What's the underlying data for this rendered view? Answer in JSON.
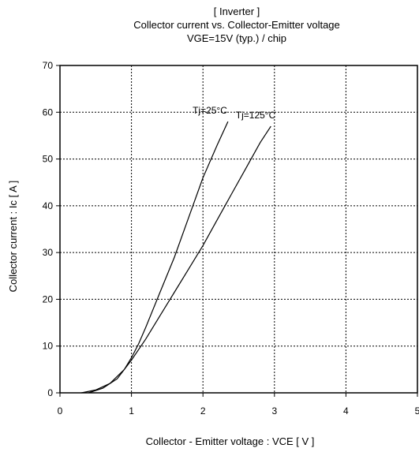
{
  "chart_data": {
    "type": "line",
    "title_lines": [
      "[ Inverter ]",
      "Collector current  vs.  Collector-Emitter voltage",
      "VGE=15V  (typ.) / chip"
    ],
    "xlabel": "Collector - Emitter voltage  :  VCE  [ V ]",
    "ylabel": "Collector current  :  Ic  [ A ]",
    "xlim": [
      0,
      5
    ],
    "ylim": [
      0,
      70
    ],
    "xticks": [
      0,
      1,
      2,
      3,
      4,
      5
    ],
    "yticks": [
      0,
      10,
      20,
      30,
      40,
      50,
      60,
      70
    ],
    "grid": true,
    "series": [
      {
        "name": "Tj=25°C",
        "points": [
          [
            0.3,
            0
          ],
          [
            0.5,
            0.6
          ],
          [
            0.7,
            2
          ],
          [
            0.9,
            5
          ],
          [
            1.0,
            7.5
          ],
          [
            1.1,
            10.5
          ],
          [
            1.2,
            14
          ],
          [
            1.4,
            21.5
          ],
          [
            1.6,
            29
          ],
          [
            1.8,
            37.5
          ],
          [
            2.0,
            46
          ],
          [
            2.2,
            53
          ],
          [
            2.35,
            58
          ]
        ]
      },
      {
        "name": "Tj=125°C",
        "points": [
          [
            0.4,
            0
          ],
          [
            0.6,
            1
          ],
          [
            0.8,
            3
          ],
          [
            1.0,
            7
          ],
          [
            1.2,
            11.5
          ],
          [
            1.4,
            16.5
          ],
          [
            1.6,
            21.5
          ],
          [
            1.8,
            26.5
          ],
          [
            2.0,
            31.5
          ],
          [
            2.2,
            37
          ],
          [
            2.4,
            42.5
          ],
          [
            2.6,
            48
          ],
          [
            2.8,
            53.5
          ],
          [
            2.95,
            57
          ]
        ]
      }
    ]
  }
}
